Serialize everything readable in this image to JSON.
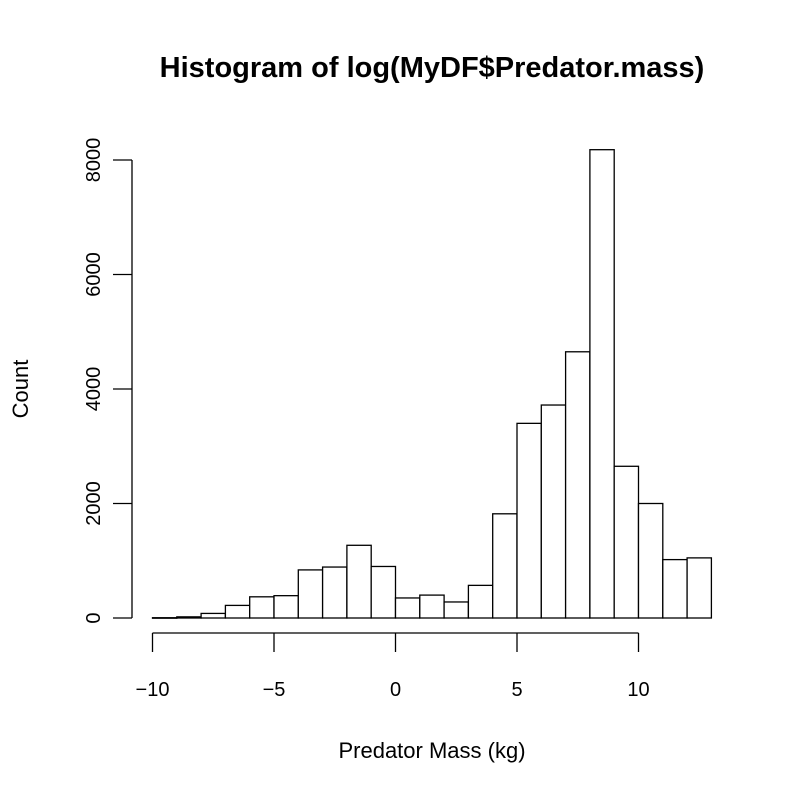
{
  "chart_data": {
    "type": "bar",
    "title": "Histogram of log(MyDF$Predator.mass)",
    "xlabel": "Predator Mass (kg)",
    "ylabel": "Count",
    "bin_width": 1,
    "bins": [
      {
        "x0": -10,
        "x1": -9,
        "count": 5
      },
      {
        "x0": -9,
        "x1": -8,
        "count": 20
      },
      {
        "x0": -8,
        "x1": -7,
        "count": 80
      },
      {
        "x0": -7,
        "x1": -6,
        "count": 220
      },
      {
        "x0": -6,
        "x1": -5,
        "count": 370
      },
      {
        "x0": -5,
        "x1": -4,
        "count": 390
      },
      {
        "x0": -4,
        "x1": -3,
        "count": 840
      },
      {
        "x0": -3,
        "x1": -2,
        "count": 890
      },
      {
        "x0": -2,
        "x1": -1,
        "count": 1270
      },
      {
        "x0": -1,
        "x1": 0,
        "count": 900
      },
      {
        "x0": 0,
        "x1": 1,
        "count": 350
      },
      {
        "x0": 1,
        "x1": 2,
        "count": 400
      },
      {
        "x0": 2,
        "x1": 3,
        "count": 280
      },
      {
        "x0": 3,
        "x1": 4,
        "count": 570
      },
      {
        "x0": 4,
        "x1": 5,
        "count": 1820
      },
      {
        "x0": 5,
        "x1": 6,
        "count": 3400
      },
      {
        "x0": 6,
        "x1": 7,
        "count": 3720
      },
      {
        "x0": 7,
        "x1": 8,
        "count": 4650
      },
      {
        "x0": 8,
        "x1": 9,
        "count": 8180
      },
      {
        "x0": 9,
        "x1": 10,
        "count": 2650
      },
      {
        "x0": 10,
        "x1": 11,
        "count": 2000
      },
      {
        "x0": 11,
        "x1": 12,
        "count": 1020
      },
      {
        "x0": 12,
        "x1": 13,
        "count": 1050
      }
    ],
    "xlim": [
      -10,
      13
    ],
    "ylim": [
      0,
      8180
    ],
    "x_ticks": [
      -10,
      -5,
      0,
      5,
      10
    ],
    "x_tick_labels": [
      "−10",
      "−5",
      "0",
      "5",
      "10"
    ],
    "y_ticks": [
      0,
      2000,
      4000,
      6000,
      8000
    ],
    "y_tick_labels": [
      "0",
      "2000",
      "4000",
      "6000",
      "8000"
    ],
    "grid": false,
    "legend": "none",
    "colors": {
      "bar_fill": "#ffffff",
      "bar_stroke": "#000000"
    }
  }
}
